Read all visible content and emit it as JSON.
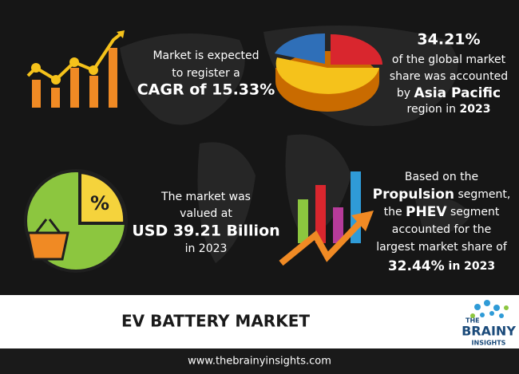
{
  "cagr": {
    "line1": "Market is expected",
    "line2": "to register a",
    "line3": "CAGR of 15.33%"
  },
  "region": {
    "share": "34.21%",
    "line1": "of the global market",
    "line2": "share was accounted",
    "line3_pre": "by ",
    "line3_bold": "Asia Pacific",
    "line4_pre": "region in ",
    "line4_bold": "2023"
  },
  "value": {
    "line1": "The market was",
    "line2": "valued at",
    "line3": "USD 39.21 Billion",
    "line4": "in 2023"
  },
  "segment": {
    "line1": "Based on the",
    "line2_bold": "Propulsion",
    "line2_post": " segment,",
    "line3_pre": "the ",
    "line3_bold": "PHEV",
    "line3_post": " segment",
    "line4": "accounted for the",
    "line5": "largest market share of",
    "line6_bold": "32.44%",
    "line6_post": " in 2023"
  },
  "icon_symbol": "%",
  "title": "EV BATTERY MARKET",
  "logo": {
    "line1": "THE",
    "line2": "BRAINY",
    "line3": "INSIGHTS"
  },
  "footer": "www.thebrainyinsights.com"
}
